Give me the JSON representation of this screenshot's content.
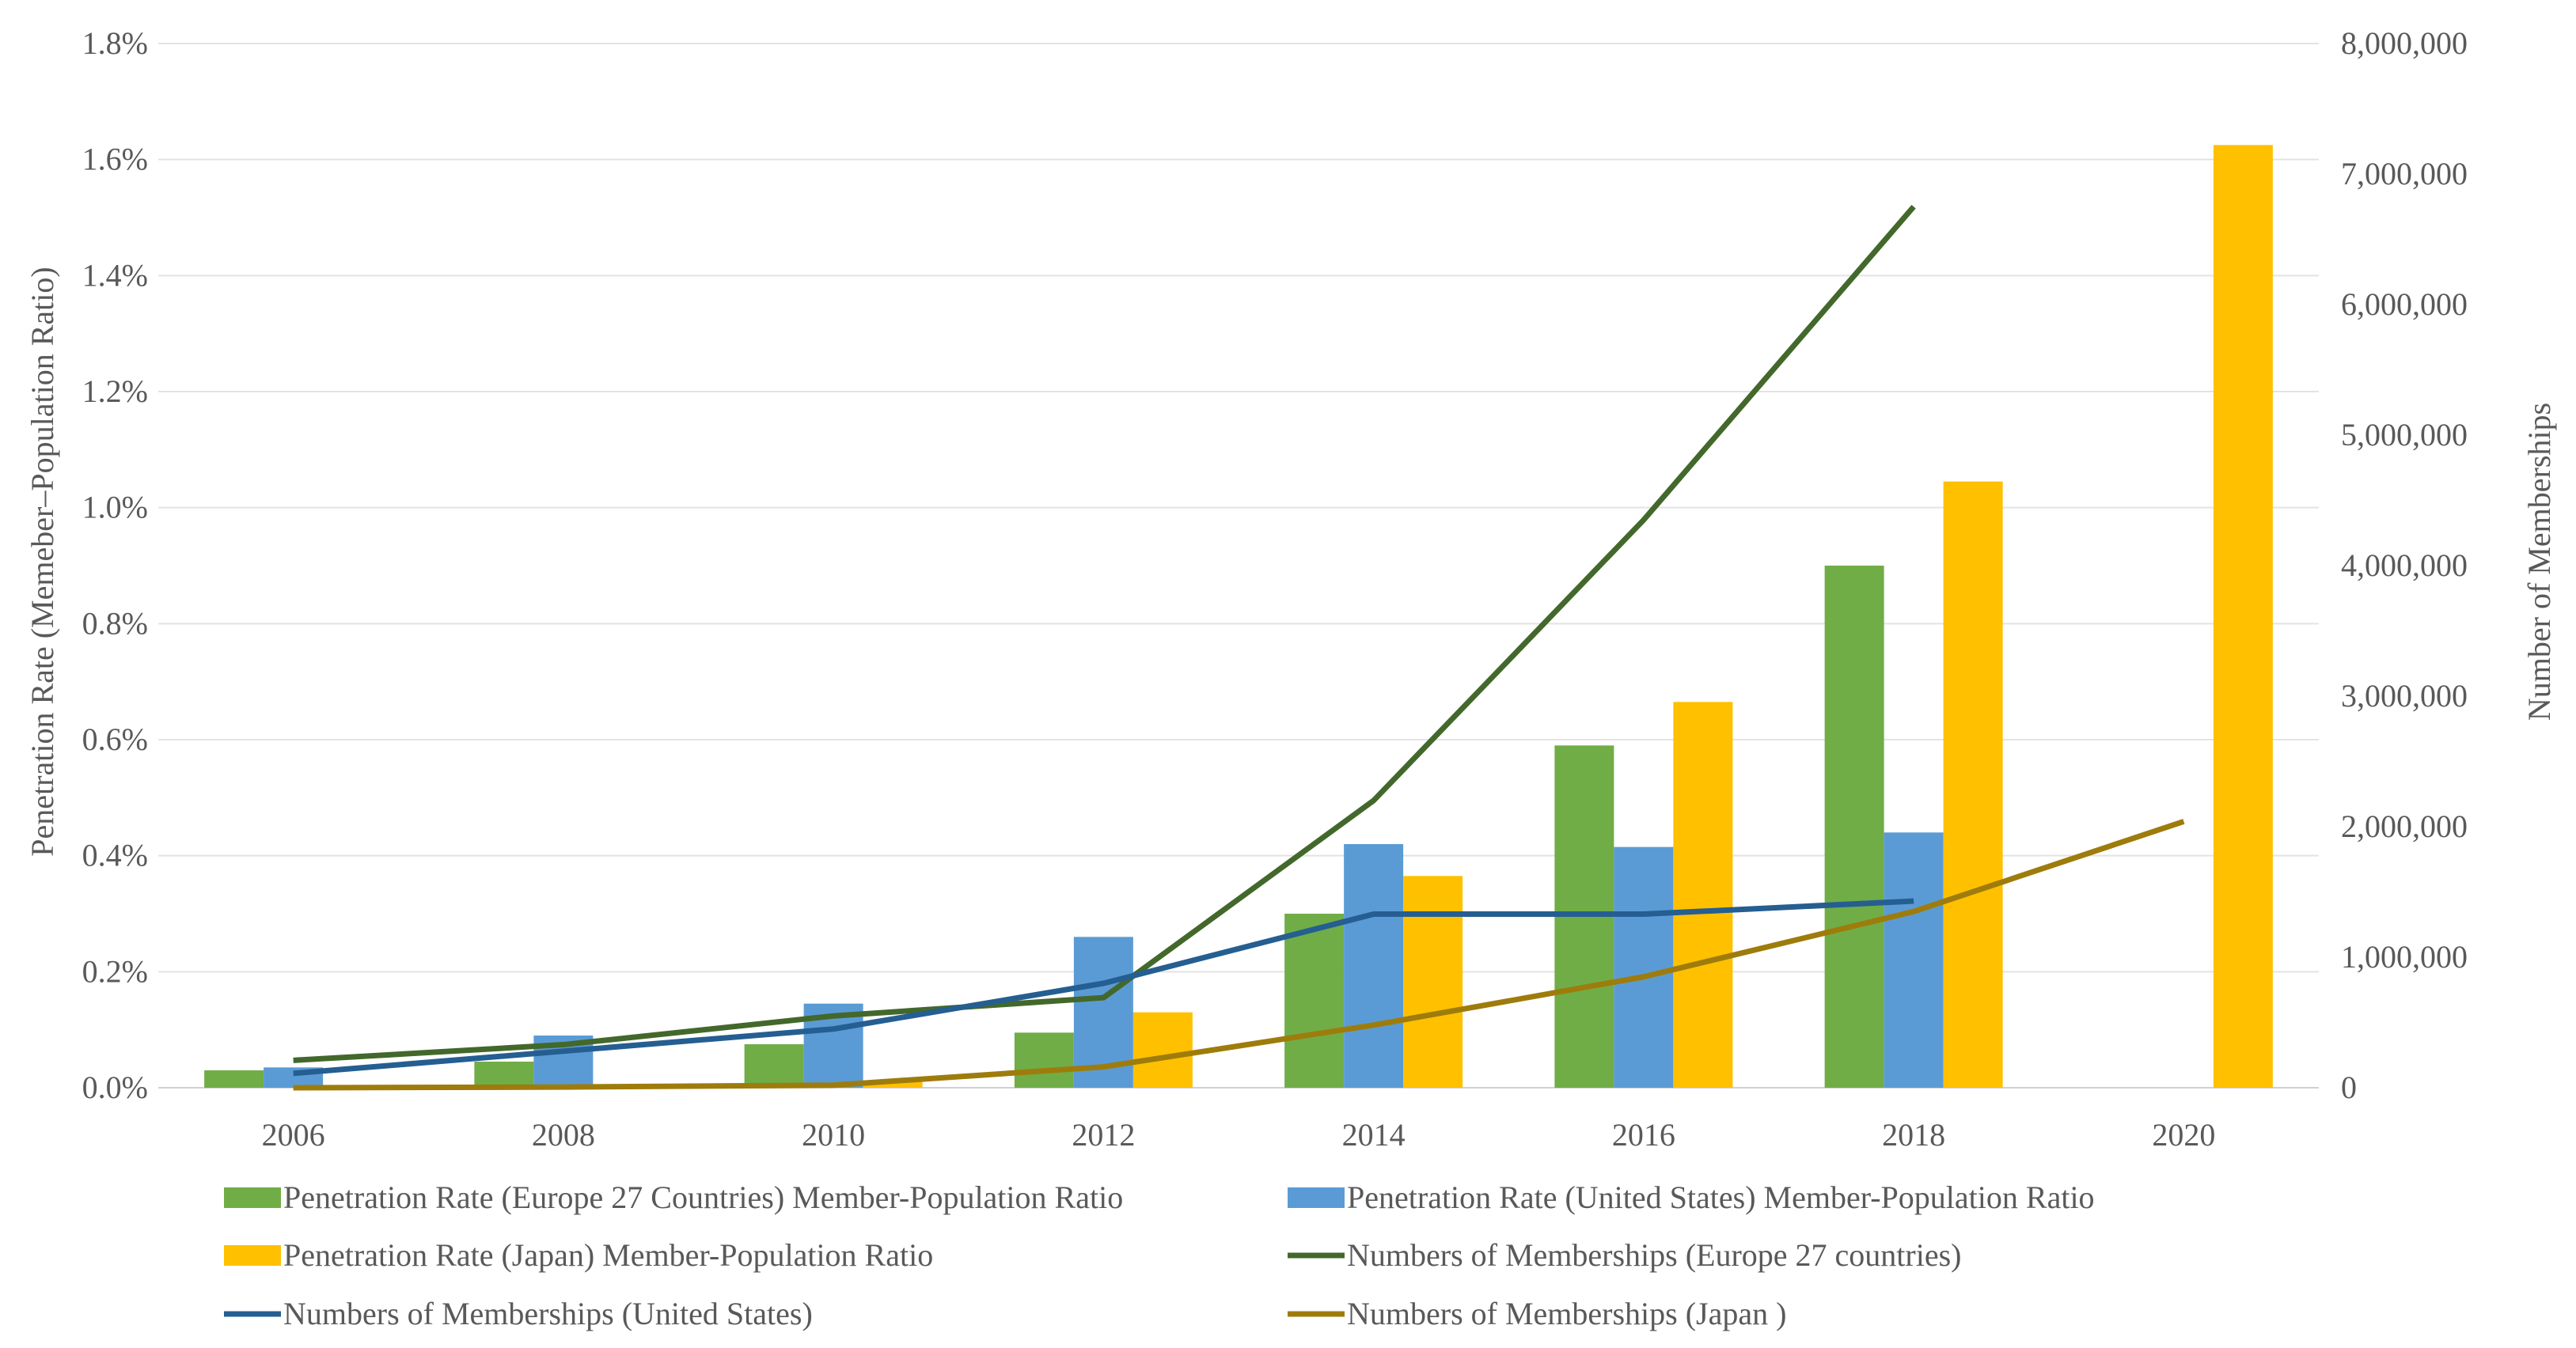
{
  "chart_data": {
    "type": "bar",
    "title": "",
    "categories": [
      "2006",
      "2008",
      "2010",
      "2012",
      "2014",
      "2016",
      "2018",
      "2020"
    ],
    "y_left": {
      "label": "Penetration Rate (Memeber–Population Ratio)",
      "range": [
        0,
        1.8
      ],
      "ticks": [
        "0.0%",
        "0.2%",
        "0.4%",
        "0.6%",
        "0.8%",
        "1.0%",
        "1.2%",
        "1.4%",
        "1.6%",
        "1.8%"
      ],
      "unit": "%"
    },
    "y_right": {
      "label": "Number of Memberships",
      "range": [
        0,
        8000000
      ],
      "ticks": [
        "0",
        "1,000,000",
        "2,000,000",
        "3,000,000",
        "4,000,000",
        "5,000,000",
        "6,000,000",
        "7,000,000",
        "8,000,000"
      ]
    },
    "bar_series": [
      {
        "name": "Penetration Rate (Europe 27 Countries)  Member-Population Ratio",
        "color": "#70AD47",
        "values": [
          0.03,
          0.045,
          0.075,
          0.095,
          0.3,
          0.59,
          0.9,
          null
        ]
      },
      {
        "name": "Penetration Rate (United States)  Member-Population Ratio",
        "color": "#5B9BD5",
        "values": [
          0.035,
          0.09,
          0.145,
          0.26,
          0.42,
          0.415,
          0.44,
          null
        ]
      },
      {
        "name": "Penetration Rate (Japan)  Member-Population Ratio",
        "color": "#FFC000",
        "values": [
          0.002,
          0.004,
          0.012,
          0.13,
          0.365,
          0.665,
          1.045,
          1.625
        ]
      }
    ],
    "line_series": [
      {
        "name": "Numbers of Memberships (Europe 27 countries)",
        "color": "#43682B",
        "values": [
          210000,
          330000,
          550000,
          690000,
          2200000,
          4350000,
          6750000,
          null
        ]
      },
      {
        "name": "Numbers of Memberships (United States)",
        "color": "#255E91",
        "values": [
          110000,
          280000,
          450000,
          800000,
          1330000,
          1330000,
          1430000,
          null
        ]
      },
      {
        "name": "Numbers of Memberships (Japan )",
        "color": "#9E7C0C",
        "values": [
          0,
          5000,
          20000,
          160000,
          480000,
          850000,
          1350000,
          2040000
        ]
      }
    ],
    "legend_position": "bottom",
    "grid": true
  }
}
